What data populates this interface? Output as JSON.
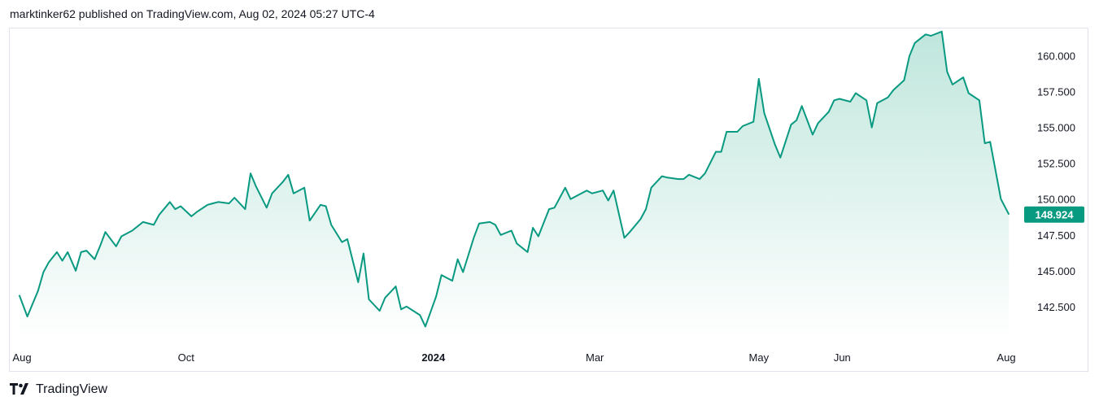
{
  "header": {
    "published_text": "marktinker62 published on TradingView.com, Aug 02, 2024 05:27 UTC-4"
  },
  "footer": {
    "brand": "TradingView"
  },
  "colors": {
    "line": "#089981",
    "fill_top": "#bfe6dc",
    "fill_bottom": "#ffffff",
    "price_badge": "#089981",
    "axis_text": "#131722"
  },
  "chart_data": {
    "type": "area",
    "title": "",
    "xlabel": "",
    "ylabel": "",
    "last_price_label": "148.924",
    "ylim": [
      140.5,
      161.8
    ],
    "y_ticks": [
      142.5,
      145.0,
      147.5,
      150.0,
      152.5,
      155.0,
      157.5,
      160.0
    ],
    "y_tick_labels": [
      "142.500",
      "145.000",
      "147.500",
      "150.000",
      "152.500",
      "155.000",
      "157.500",
      "160.000"
    ],
    "x_tick_labels": [
      {
        "label": "Aug",
        "date": "2023-08-01",
        "bold": false
      },
      {
        "label": "Oct",
        "date": "2023-10-01",
        "bold": false
      },
      {
        "label": "2024",
        "date": "2024-01-01",
        "bold": true
      },
      {
        "label": "Mar",
        "date": "2024-03-01",
        "bold": false
      },
      {
        "label": "May",
        "date": "2024-05-01",
        "bold": false
      },
      {
        "label": "Jun",
        "date": "2024-06-01",
        "bold": false
      },
      {
        "label": "Aug",
        "date": "2024-08-01",
        "bold": false
      }
    ],
    "grid": false,
    "series": [
      {
        "x": [
          "2023-07-31",
          "2023-08-03",
          "2023-08-07",
          "2023-08-09",
          "2023-08-11",
          "2023-08-14",
          "2023-08-16",
          "2023-08-18",
          "2023-08-21",
          "2023-08-23",
          "2023-08-25",
          "2023-08-28",
          "2023-08-30",
          "2023-09-01",
          "2023-09-05",
          "2023-09-07",
          "2023-09-11",
          "2023-09-13",
          "2023-09-15",
          "2023-09-19",
          "2023-09-21",
          "2023-09-25",
          "2023-09-27",
          "2023-09-29",
          "2023-10-03",
          "2023-10-05",
          "2023-10-09",
          "2023-10-11",
          "2023-10-13",
          "2023-10-17",
          "2023-10-19",
          "2023-10-23",
          "2023-10-25",
          "2023-10-27",
          "2023-10-31",
          "2023-11-02",
          "2023-11-06",
          "2023-11-08",
          "2023-11-10",
          "2023-11-14",
          "2023-11-16",
          "2023-11-20",
          "2023-11-22",
          "2023-11-24",
          "2023-11-28",
          "2023-11-30",
          "2023-12-04",
          "2023-12-06",
          "2023-12-08",
          "2023-12-12",
          "2023-12-14",
          "2023-12-18",
          "2023-12-20",
          "2023-12-22",
          "2023-12-27",
          "2023-12-29",
          "2024-01-02",
          "2024-01-04",
          "2024-01-08",
          "2024-01-10",
          "2024-01-12",
          "2024-01-16",
          "2024-01-18",
          "2024-01-22",
          "2024-01-24",
          "2024-01-26",
          "2024-01-30",
          "2024-02-01",
          "2024-02-05",
          "2024-02-07",
          "2024-02-09",
          "2024-02-13",
          "2024-02-15",
          "2024-02-19",
          "2024-02-21",
          "2024-02-23",
          "2024-02-27",
          "2024-02-29",
          "2024-03-04",
          "2024-03-06",
          "2024-03-08",
          "2024-03-12",
          "2024-03-14",
          "2024-03-18",
          "2024-03-20",
          "2024-03-22",
          "2024-03-26",
          "2024-03-28",
          "2024-04-01",
          "2024-04-03",
          "2024-04-05",
          "2024-04-09",
          "2024-04-11",
          "2024-04-15",
          "2024-04-17",
          "2024-04-19",
          "2024-04-23",
          "2024-04-25",
          "2024-04-29",
          "2024-05-01",
          "2024-05-03",
          "2024-05-07",
          "2024-05-09",
          "2024-05-13",
          "2024-05-15",
          "2024-05-17",
          "2024-05-21",
          "2024-05-23",
          "2024-05-27",
          "2024-05-29",
          "2024-05-31",
          "2024-06-04",
          "2024-06-06",
          "2024-06-10",
          "2024-06-12",
          "2024-06-14",
          "2024-06-18",
          "2024-06-20",
          "2024-06-24",
          "2024-06-26",
          "2024-06-28",
          "2024-07-02",
          "2024-07-04",
          "2024-07-08",
          "2024-07-10",
          "2024-07-12",
          "2024-07-16",
          "2024-07-18",
          "2024-07-22",
          "2024-07-24",
          "2024-07-26",
          "2024-07-30",
          "2024-08-02"
        ],
        "values": [
          143.3,
          141.8,
          143.6,
          144.9,
          145.6,
          146.3,
          145.7,
          146.3,
          145.0,
          146.3,
          146.4,
          145.8,
          146.7,
          147.7,
          146.7,
          147.4,
          147.8,
          148.1,
          148.4,
          148.2,
          148.9,
          149.8,
          149.3,
          149.5,
          148.8,
          149.1,
          149.6,
          149.7,
          149.8,
          149.7,
          150.1,
          149.3,
          151.8,
          150.9,
          149.4,
          150.4,
          151.2,
          151.7,
          150.4,
          150.8,
          148.5,
          149.6,
          149.5,
          148.2,
          147.0,
          147.2,
          144.2,
          146.2,
          143.0,
          142.2,
          143.1,
          143.9,
          142.3,
          142.5,
          141.9,
          141.1,
          143.2,
          144.7,
          144.3,
          145.8,
          144.9,
          147.3,
          148.3,
          148.4,
          148.2,
          147.5,
          147.8,
          146.9,
          146.3,
          148.0,
          147.4,
          149.3,
          149.4,
          150.8,
          150.0,
          150.2,
          150.6,
          150.4,
          150.6,
          149.9,
          150.6,
          147.3,
          147.7,
          148.6,
          149.3,
          150.8,
          151.6,
          151.5,
          151.4,
          151.4,
          151.7,
          151.4,
          151.8,
          153.3,
          153.3,
          154.7,
          154.7,
          155.1,
          155.4,
          158.4,
          156.0,
          153.8,
          152.9,
          155.2,
          155.5,
          156.5,
          154.5,
          155.3,
          156.1,
          156.9,
          157.0,
          156.8,
          157.4,
          156.9,
          155.0,
          156.7,
          157.1,
          157.6,
          158.3,
          160.0,
          160.9,
          161.5,
          161.4,
          161.7,
          158.9,
          158.0,
          158.5,
          157.4,
          156.9,
          153.9,
          154.0,
          150.0,
          148.924
        ],
        "color": "#089981"
      }
    ]
  }
}
